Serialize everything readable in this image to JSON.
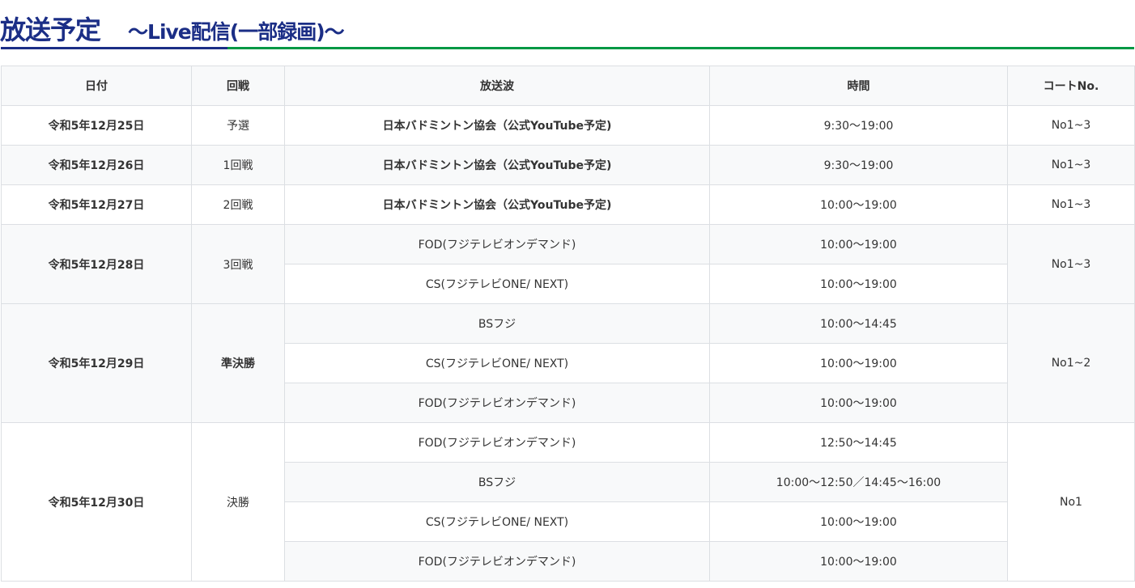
{
  "header": {
    "title": "放送予定",
    "subtitle": "～Live配信(一部録画)～",
    "colors": {
      "title": "#1b2e86",
      "accent_line": "#009844"
    }
  },
  "table": {
    "columns": [
      "日付",
      "回戦",
      "放送波",
      "時間",
      "コートNo."
    ],
    "rows": [
      {
        "date": "令和5年12月25日",
        "round": "予選",
        "broadcasts": [
          {
            "channel": "日本バドミントン協会（公式YouTube予定)",
            "time": "9:30〜19:00"
          }
        ],
        "court": "No1~3"
      },
      {
        "date": "令和5年12月26日",
        "round": "1回戦",
        "broadcasts": [
          {
            "channel": "日本バドミントン協会（公式YouTube予定)",
            "time": "9:30〜19:00"
          }
        ],
        "court": "No1~3"
      },
      {
        "date": "令和5年12月27日",
        "round": "2回戦",
        "broadcasts": [
          {
            "channel": "日本バドミントン協会（公式YouTube予定)",
            "time": "10:00〜19:00"
          }
        ],
        "court": "No1~3"
      },
      {
        "date": "令和5年12月28日",
        "round": "3回戦",
        "broadcasts": [
          {
            "channel": "FOD(フジテレビオンデマンド)",
            "time": "10:00〜19:00"
          },
          {
            "channel": "CS(フジテレビONE/ NEXT)",
            "time": "10:00〜19:00"
          }
        ],
        "court": "No1~3"
      },
      {
        "date": "令和5年12月29日",
        "round": "準決勝",
        "broadcasts": [
          {
            "channel": "BSフジ",
            "time": "10:00〜14:45"
          },
          {
            "channel": "CS(フジテレビONE/ NEXT)",
            "time": "10:00〜19:00"
          },
          {
            "channel": "FOD(フジテレビオンデマンド)",
            "time": "10:00〜19:00"
          }
        ],
        "court": "No1~2"
      },
      {
        "date": "令和5年12月30日",
        "round": "決勝",
        "broadcasts": [
          {
            "channel": "FOD(フジテレビオンデマンド)",
            "time": "12:50〜14:45"
          },
          {
            "channel": "BSフジ",
            "time": "10:00〜12:50／14:45〜16:00"
          },
          {
            "channel": "CS(フジテレビONE/ NEXT)",
            "time": "10:00〜19:00"
          },
          {
            "channel": "FOD(フジテレビオンデマンド)",
            "time": "10:00〜19:00"
          }
        ],
        "court": "No1"
      }
    ]
  }
}
